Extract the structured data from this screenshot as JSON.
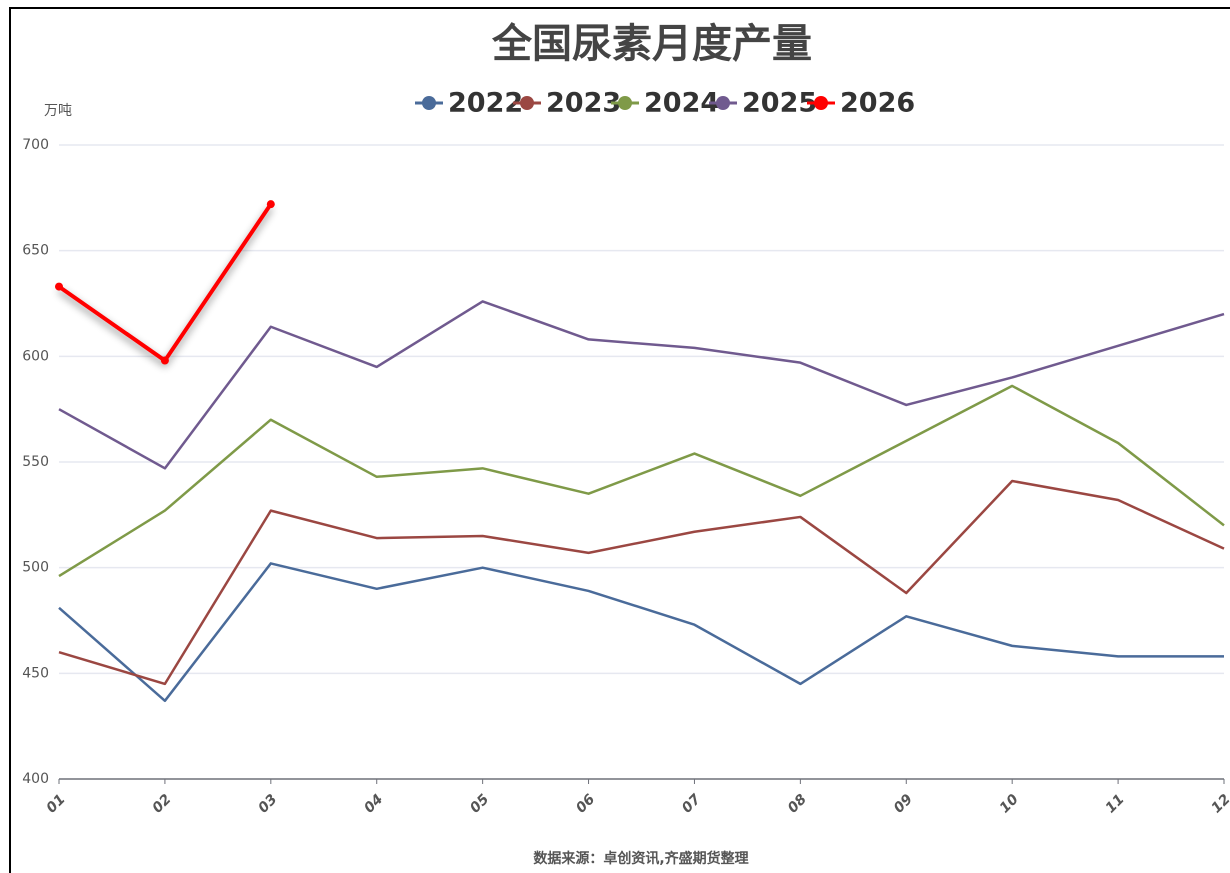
{
  "chart_data": {
    "type": "line",
    "title": "全国尿素月度产量",
    "y_unit": "万吨",
    "source": "数据来源：卓创资讯,齐盛期货整理",
    "categories": [
      "01",
      "02",
      "03",
      "04",
      "05",
      "06",
      "07",
      "08",
      "09",
      "10",
      "11",
      "12"
    ],
    "series": [
      {
        "name": "2022",
        "color": "#4a6b9a",
        "values": [
          481,
          437,
          502,
          490,
          500,
          489,
          473,
          445,
          477,
          463,
          458,
          458
        ]
      },
      {
        "name": "2023",
        "color": "#9b4742",
        "values": [
          460,
          445,
          527,
          514,
          515,
          507,
          517,
          524,
          488,
          541,
          532,
          509
        ]
      },
      {
        "name": "2024",
        "color": "#7f9a48",
        "values": [
          496,
          527,
          570,
          543,
          547,
          535,
          554,
          534,
          560,
          586,
          559,
          520
        ]
      },
      {
        "name": "2025",
        "color": "#705a8f",
        "values": [
          575,
          547,
          614,
          595,
          626,
          608,
          604,
          597,
          577,
          590,
          605,
          620
        ]
      },
      {
        "name": "2026",
        "color": "#ff0000",
        "values": [
          633,
          598,
          672,
          null,
          null,
          null,
          null,
          null,
          null,
          null,
          null,
          null
        ]
      }
    ],
    "ylim": [
      400,
      700
    ],
    "yticks": [
      400,
      450,
      500,
      550,
      600,
      650,
      700
    ],
    "grid": true,
    "legend": "top"
  }
}
